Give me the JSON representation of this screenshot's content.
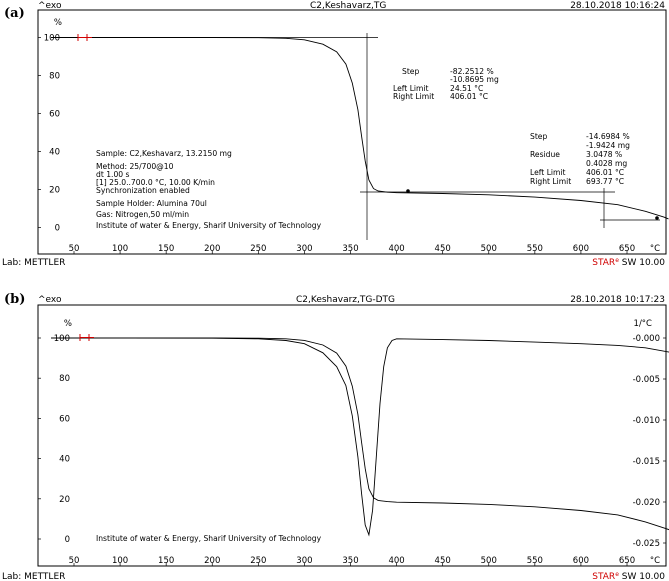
{
  "chart_data": [
    {
      "panel_label": "(a)",
      "type": "line",
      "header": {
        "exo": "^exo",
        "title": "C2,Keshavarz,TG",
        "datetime": "28.10.2018 10:16:24"
      },
      "y_unit": "%",
      "x_unit": "°C",
      "xlim": [
        25,
        700
      ],
      "ylim": [
        -5,
        105
      ],
      "x_ticks": [
        "50",
        "100",
        "150",
        "200",
        "250",
        "300",
        "350",
        "400",
        "450",
        "500",
        "550",
        "600",
        "650"
      ],
      "y_ticks": [
        "0",
        "20",
        "40",
        "60",
        "80",
        "100"
      ],
      "series": [
        {
          "kind": "TG",
          "x": [
            25,
            100,
            200,
            250,
            280,
            300,
            320,
            335,
            345,
            352,
            358,
            362,
            366,
            370,
            375,
            380,
            390,
            400,
            450,
            500,
            550,
            600,
            640,
            670,
            690,
            695
          ],
          "y": [
            100,
            100,
            100,
            99.9,
            99.6,
            98.8,
            96.5,
            92.5,
            86,
            76,
            62,
            48,
            35,
            25,
            20.5,
            19.2,
            18.6,
            18.3,
            17.9,
            17.2,
            16,
            14.2,
            12,
            8.5,
            5.5,
            4.5
          ]
        }
      ],
      "left_annotation": [
        "Sample: C2,Keshavarz, 13.2150 mg",
        "Method: 25/700@10",
        "dt 1.00 s",
        "[1] 25.0..700.0 °C, 10.00 K/min",
        "Synchronization enabled",
        "Sample Holder: Alumina 70ul",
        "Gas: Nitrogen,50 ml/min",
        "Institute of water & Energy, Sharif University of Technology"
      ],
      "step1": {
        "step_label": "Step",
        "step_pct": "-82.2512 %",
        "step_mg": "-10.8695 mg",
        "left_label": "Left Limit",
        "left_val": "24.51 °C",
        "right_label": "Right Limit",
        "right_val": "406.01 °C"
      },
      "step2": {
        "step_label": "Step",
        "step_pct": "-14.6984 %",
        "step_mg": "-1.9424 mg",
        "residue_label": "Residue",
        "residue_pct": "3.0478 %",
        "residue_mg": "0.4028 mg",
        "left_label": "Left Limit",
        "left_val": "406.01 °C",
        "right_label": "Right Limit",
        "right_val": "693.77 °C"
      },
      "footer": {
        "lab": "Lab: METTLER",
        "star": "STAR",
        "sup": "e",
        "sw": " SW 10.00"
      }
    },
    {
      "panel_label": "(b)",
      "type": "line",
      "header": {
        "exo": "^exo",
        "title": "C2,Keshavarz,TG-DTG",
        "datetime": "28.10.2018 10:17:23"
      },
      "y_unit": "%",
      "y2_unit": "1/°C",
      "x_unit": "°C",
      "xlim": [
        25,
        700
      ],
      "ylim": [
        -5,
        105
      ],
      "y2lim": [
        -0.0255,
        0.0016
      ],
      "x_ticks": [
        "50",
        "100",
        "150",
        "200",
        "250",
        "300",
        "350",
        "400",
        "450",
        "500",
        "550",
        "600",
        "650"
      ],
      "y_ticks": [
        "0",
        "20",
        "40",
        "60",
        "80",
        "100"
      ],
      "y2_ticks": [
        "-0.000",
        "-0.005",
        "-0.010",
        "-0.015",
        "-0.020",
        "-0.025"
      ],
      "series": [
        {
          "kind": "TG",
          "x": [
            25,
            100,
            200,
            250,
            280,
            300,
            320,
            335,
            345,
            352,
            358,
            362,
            366,
            370,
            375,
            380,
            390,
            400,
            450,
            500,
            550,
            600,
            640,
            670,
            690,
            700
          ],
          "y": [
            100,
            100,
            100,
            99.9,
            99.6,
            98.8,
            96.5,
            92.5,
            86,
            76,
            62,
            48,
            35,
            25,
            20.5,
            19.2,
            18.6,
            18.3,
            17.9,
            17.2,
            16,
            14.2,
            12,
            8.5,
            5.5,
            4
          ]
        },
        {
          "kind": "DTG",
          "x": [
            25,
            100,
            200,
            250,
            280,
            300,
            320,
            335,
            345,
            352,
            358,
            362,
            366,
            370,
            374,
            378,
            382,
            386,
            390,
            395,
            400,
            450,
            500,
            550,
            600,
            640,
            670,
            700
          ],
          "y": [
            0,
            0,
            -3e-05,
            -0.0001,
            -0.0003,
            -0.0007,
            -0.0018,
            -0.0035,
            -0.0058,
            -0.0095,
            -0.0145,
            -0.019,
            -0.0228,
            -0.024,
            -0.021,
            -0.0145,
            -0.008,
            -0.0035,
            -0.0012,
            -0.0003,
            -0.0001,
            -0.0002,
            -0.0003,
            -0.0005,
            -0.0007,
            -0.0009,
            -0.0012,
            -0.0018
          ]
        }
      ],
      "left_annotation": [
        "Institute of water & Energy, Sharif University of Technology"
      ],
      "footer": {
        "lab": "Lab: METTLER",
        "star": "STAR",
        "sup": "e",
        "sw": " SW 10.00"
      }
    }
  ]
}
